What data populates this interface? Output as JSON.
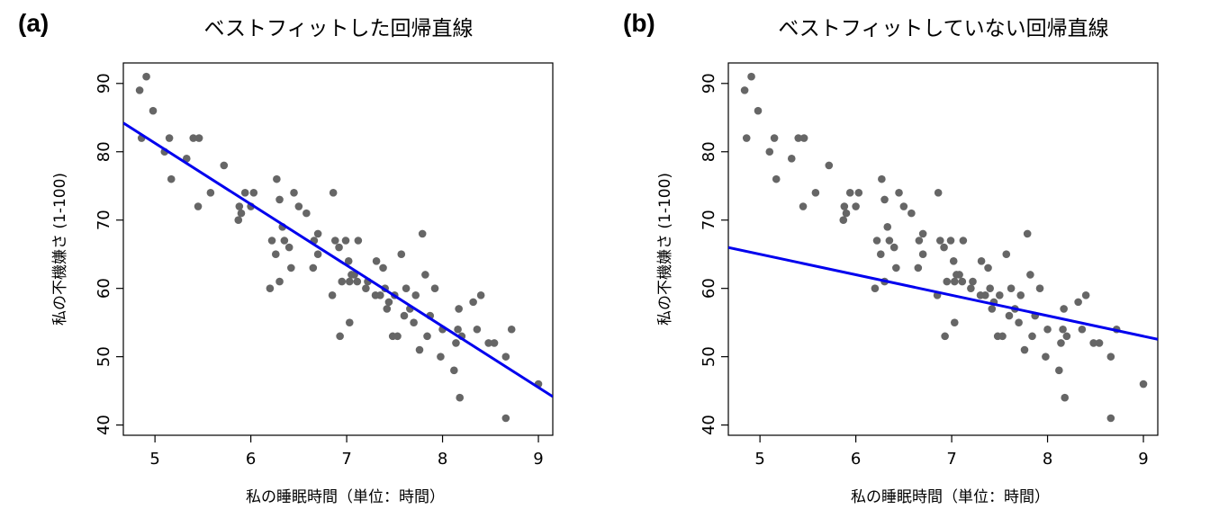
{
  "panels": [
    {
      "label": "(a)",
      "title": "ベストフィットした回帰直線"
    },
    {
      "label": "(b)",
      "title": "ベストフィットしていない回帰直線"
    }
  ],
  "chart_data": [
    {
      "type": "scatter",
      "title": "ベストフィットした回帰直線",
      "xlabel": "私の睡眠時間（単位：時間）",
      "ylabel": "私の不機嫌さ (1-100)",
      "xlim": [
        4.67,
        9.15
      ],
      "ylim": [
        38.5,
        93
      ],
      "xticks": [
        5,
        6,
        7,
        8,
        9
      ],
      "yticks": [
        40,
        50,
        60,
        70,
        80,
        90
      ],
      "grid": false,
      "point_color": "#666666",
      "line_color": "#0000ee",
      "regression_line": {
        "intercept": 125.96,
        "slope": -8.94
      },
      "points": [
        [
          4.84,
          89
        ],
        [
          4.91,
          91
        ],
        [
          4.98,
          86
        ],
        [
          4.86,
          82
        ],
        [
          5.1,
          80
        ],
        [
          5.15,
          82
        ],
        [
          5.17,
          76
        ],
        [
          5.33,
          79
        ],
        [
          5.4,
          82
        ],
        [
          5.46,
          82
        ],
        [
          5.45,
          72
        ],
        [
          5.58,
          74
        ],
        [
          5.72,
          78
        ],
        [
          5.87,
          70
        ],
        [
          5.88,
          72
        ],
        [
          5.9,
          71
        ],
        [
          5.94,
          74
        ],
        [
          6.0,
          72
        ],
        [
          6.03,
          74
        ],
        [
          6.22,
          67
        ],
        [
          6.2,
          60
        ],
        [
          6.27,
          76
        ],
        [
          6.26,
          65
        ],
        [
          6.3,
          73
        ],
        [
          6.33,
          69
        ],
        [
          6.35,
          67
        ],
        [
          6.3,
          61
        ],
        [
          6.4,
          66
        ],
        [
          6.45,
          74
        ],
        [
          6.42,
          63
        ],
        [
          6.5,
          72
        ],
        [
          6.58,
          71
        ],
        [
          6.65,
          63
        ],
        [
          6.66,
          67
        ],
        [
          6.7,
          65
        ],
        [
          6.7,
          68
        ],
        [
          6.86,
          74
        ],
        [
          6.88,
          67
        ],
        [
          6.85,
          59
        ],
        [
          6.92,
          66
        ],
        [
          6.93,
          53
        ],
        [
          6.95,
          61
        ],
        [
          6.99,
          67
        ],
        [
          7.02,
          64
        ],
        [
          7.03,
          61
        ],
        [
          7.03,
          55
        ],
        [
          7.05,
          62
        ],
        [
          7.08,
          62
        ],
        [
          7.12,
          67
        ],
        [
          7.11,
          61
        ],
        [
          7.2,
          60
        ],
        [
          7.22,
          61
        ],
        [
          7.31,
          64
        ],
        [
          7.3,
          59
        ],
        [
          7.35,
          59
        ],
        [
          7.38,
          63
        ],
        [
          7.4,
          60
        ],
        [
          7.42,
          57
        ],
        [
          7.44,
          58
        ],
        [
          7.48,
          53
        ],
        [
          7.5,
          59
        ],
        [
          7.53,
          53
        ],
        [
          7.57,
          65
        ],
        [
          7.6,
          56
        ],
        [
          7.62,
          60
        ],
        [
          7.66,
          57
        ],
        [
          7.72,
          59
        ],
        [
          7.7,
          55
        ],
        [
          7.76,
          51
        ],
        [
          7.79,
          68
        ],
        [
          7.82,
          62
        ],
        [
          7.84,
          53
        ],
        [
          7.87,
          56
        ],
        [
          7.92,
          60
        ],
        [
          7.98,
          50
        ],
        [
          8.0,
          54
        ],
        [
          8.12,
          48
        ],
        [
          8.14,
          52
        ],
        [
          8.17,
          57
        ],
        [
          8.16,
          54
        ],
        [
          8.18,
          44
        ],
        [
          8.2,
          53
        ],
        [
          8.32,
          58
        ],
        [
          8.36,
          54
        ],
        [
          8.4,
          59
        ],
        [
          8.48,
          52
        ],
        [
          8.54,
          52
        ],
        [
          8.66,
          41
        ],
        [
          8.66,
          50
        ],
        [
          8.72,
          54
        ],
        [
          9.0,
          46
        ]
      ]
    },
    {
      "type": "scatter",
      "title": "ベストフィットしていない回帰直線",
      "xlabel": "私の睡眠時間（単位：時間）",
      "ylabel": "私の不機嫌さ (1-100)",
      "xlim": [
        4.67,
        9.15
      ],
      "ylim": [
        38.5,
        93
      ],
      "xticks": [
        5,
        6,
        7,
        8,
        9
      ],
      "yticks": [
        40,
        50,
        60,
        70,
        80,
        90
      ],
      "grid": false,
      "point_color": "#666666",
      "line_color": "#0000ee",
      "regression_line": {
        "intercept": 80.0,
        "slope": -3.0
      },
      "points": [
        [
          4.84,
          89
        ],
        [
          4.91,
          91
        ],
        [
          4.98,
          86
        ],
        [
          4.86,
          82
        ],
        [
          5.1,
          80
        ],
        [
          5.15,
          82
        ],
        [
          5.17,
          76
        ],
        [
          5.33,
          79
        ],
        [
          5.4,
          82
        ],
        [
          5.46,
          82
        ],
        [
          5.45,
          72
        ],
        [
          5.58,
          74
        ],
        [
          5.72,
          78
        ],
        [
          5.87,
          70
        ],
        [
          5.88,
          72
        ],
        [
          5.9,
          71
        ],
        [
          5.94,
          74
        ],
        [
          6.0,
          72
        ],
        [
          6.03,
          74
        ],
        [
          6.22,
          67
        ],
        [
          6.2,
          60
        ],
        [
          6.27,
          76
        ],
        [
          6.26,
          65
        ],
        [
          6.3,
          73
        ],
        [
          6.33,
          69
        ],
        [
          6.35,
          67
        ],
        [
          6.3,
          61
        ],
        [
          6.4,
          66
        ],
        [
          6.45,
          74
        ],
        [
          6.42,
          63
        ],
        [
          6.5,
          72
        ],
        [
          6.58,
          71
        ],
        [
          6.65,
          63
        ],
        [
          6.66,
          67
        ],
        [
          6.7,
          65
        ],
        [
          6.7,
          68
        ],
        [
          6.86,
          74
        ],
        [
          6.88,
          67
        ],
        [
          6.85,
          59
        ],
        [
          6.92,
          66
        ],
        [
          6.93,
          53
        ],
        [
          6.95,
          61
        ],
        [
          6.99,
          67
        ],
        [
          7.02,
          64
        ],
        [
          7.03,
          61
        ],
        [
          7.03,
          55
        ],
        [
          7.05,
          62
        ],
        [
          7.08,
          62
        ],
        [
          7.12,
          67
        ],
        [
          7.11,
          61
        ],
        [
          7.2,
          60
        ],
        [
          7.22,
          61
        ],
        [
          7.31,
          64
        ],
        [
          7.3,
          59
        ],
        [
          7.35,
          59
        ],
        [
          7.38,
          63
        ],
        [
          7.4,
          60
        ],
        [
          7.42,
          57
        ],
        [
          7.44,
          58
        ],
        [
          7.48,
          53
        ],
        [
          7.5,
          59
        ],
        [
          7.53,
          53
        ],
        [
          7.57,
          65
        ],
        [
          7.6,
          56
        ],
        [
          7.62,
          60
        ],
        [
          7.66,
          57
        ],
        [
          7.72,
          59
        ],
        [
          7.7,
          55
        ],
        [
          7.76,
          51
        ],
        [
          7.79,
          68
        ],
        [
          7.82,
          62
        ],
        [
          7.84,
          53
        ],
        [
          7.87,
          56
        ],
        [
          7.92,
          60
        ],
        [
          7.98,
          50
        ],
        [
          8.0,
          54
        ],
        [
          8.12,
          48
        ],
        [
          8.14,
          52
        ],
        [
          8.17,
          57
        ],
        [
          8.16,
          54
        ],
        [
          8.18,
          44
        ],
        [
          8.2,
          53
        ],
        [
          8.32,
          58
        ],
        [
          8.36,
          54
        ],
        [
          8.4,
          59
        ],
        [
          8.48,
          52
        ],
        [
          8.54,
          52
        ],
        [
          8.66,
          41
        ],
        [
          8.66,
          50
        ],
        [
          8.72,
          54
        ],
        [
          9.0,
          46
        ]
      ]
    }
  ]
}
